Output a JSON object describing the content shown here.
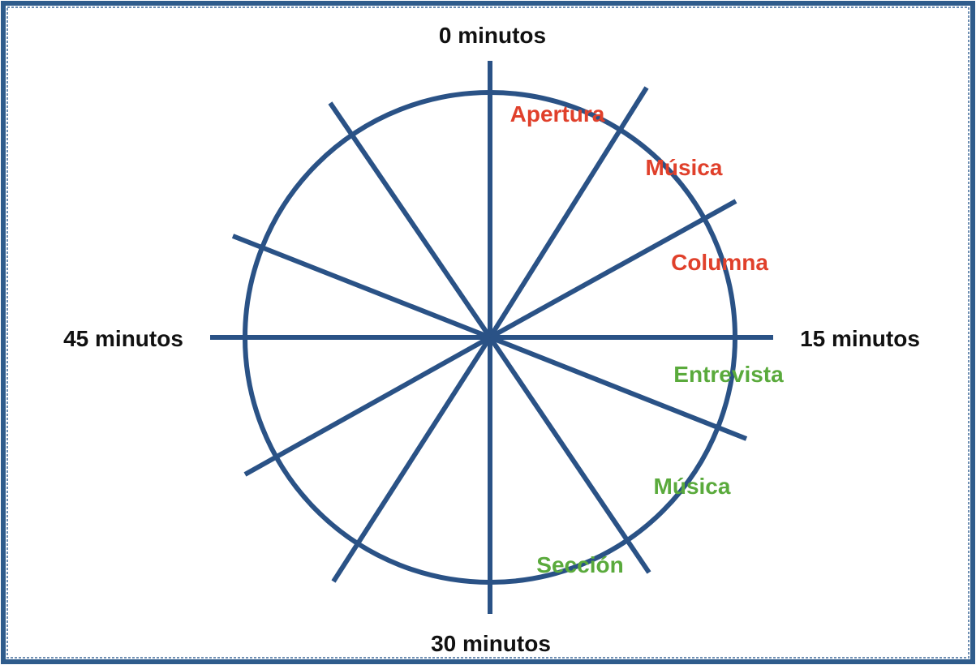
{
  "colors": {
    "line": "#2a5286",
    "border": "#2f5c8c",
    "time_label": "#111111",
    "first_half": "#e0402b",
    "second_half": "#5aaa3c"
  },
  "time_labels": {
    "top": "0 minutos",
    "right": "15 minutos",
    "bottom": "30 minutos",
    "left": "45 minutos"
  },
  "segments": {
    "first_half": [
      "Apertura",
      "Música",
      "Columna"
    ],
    "second_half": [
      "Entrevista",
      "Música",
      "Sección"
    ]
  }
}
